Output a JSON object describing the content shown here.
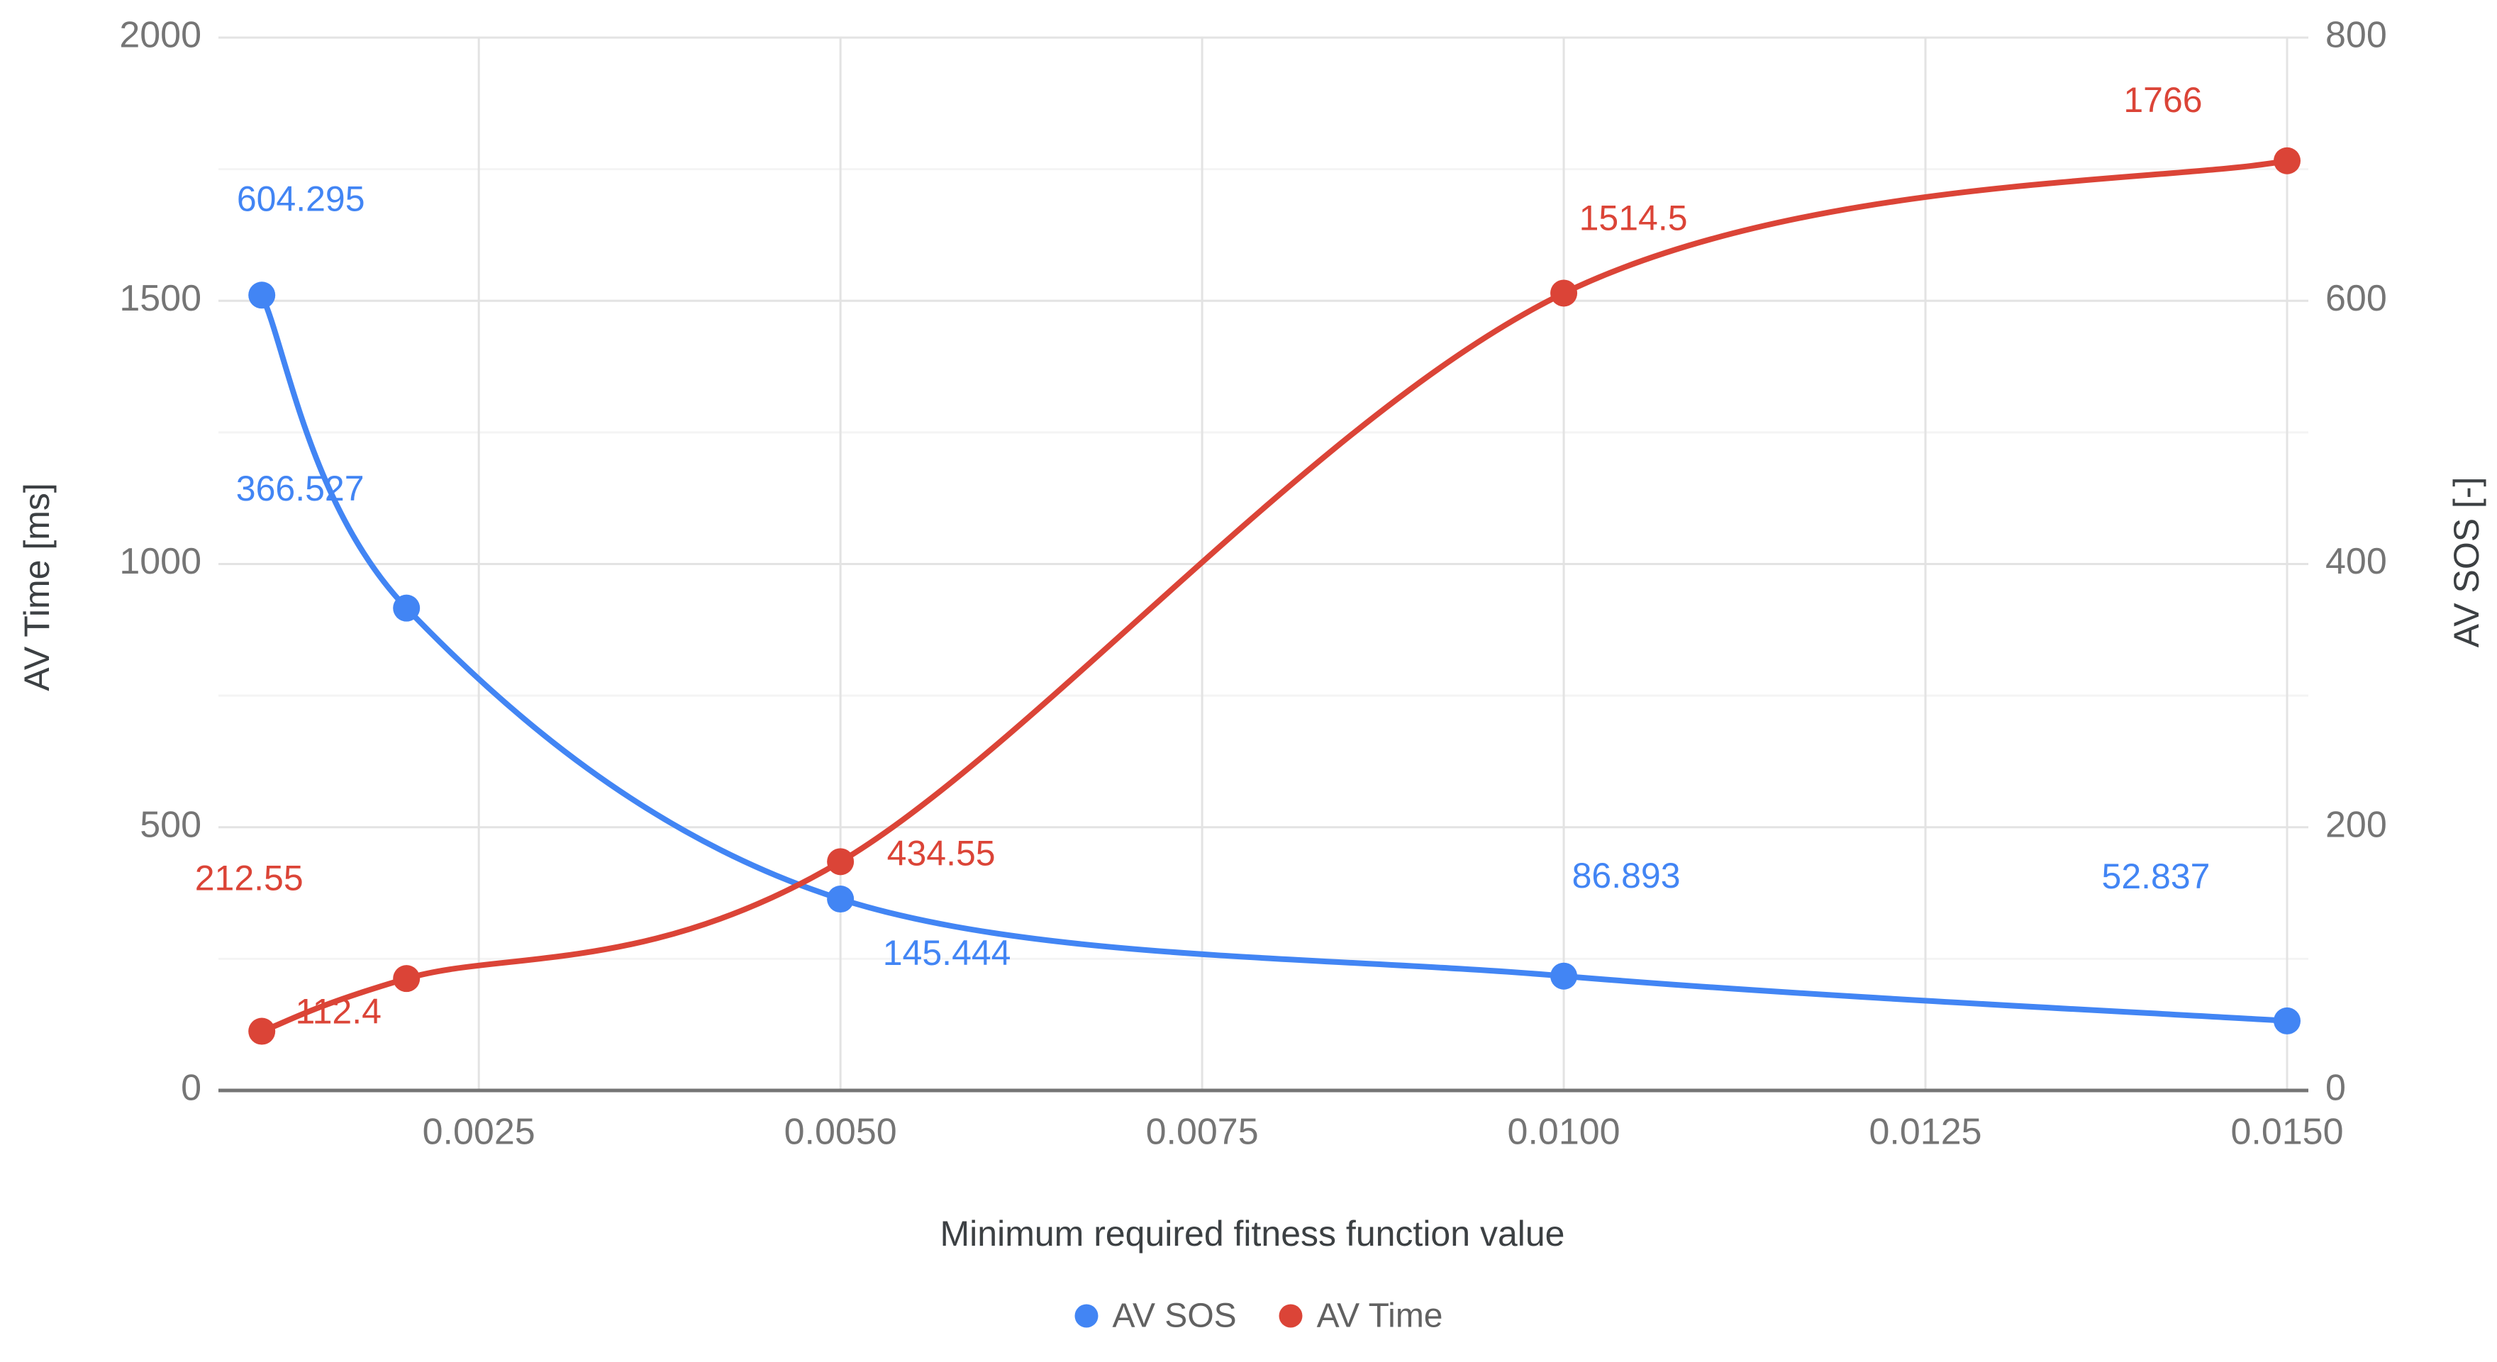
{
  "chart_data": {
    "type": "line",
    "smooth": true,
    "background": "#ffffff",
    "x": [
      0.001,
      0.002,
      0.005,
      0.01,
      0.015
    ],
    "series": [
      {
        "name": "AV SOS",
        "axis": "right",
        "color": "#4285F4",
        "values": [
          604.295,
          366.527,
          145.444,
          86.893,
          52.837
        ],
        "labels": [
          "604.295",
          "366.527",
          "145.444",
          "86.893",
          "52.837"
        ]
      },
      {
        "name": "AV Time",
        "axis": "left",
        "color": "#DB4437",
        "values": [
          112.4,
          212.55,
          434.55,
          1514.5,
          1766
        ],
        "labels": [
          "112.4",
          "212.55",
          "434.55",
          "1514.5",
          "1766"
        ]
      }
    ],
    "x_axis": {
      "title": "Minimum required fitness function value",
      "min": 0.0007,
      "max": 0.015,
      "ticks": [
        0.0025,
        0.005,
        0.0075,
        0.01,
        0.0125,
        0.015
      ],
      "tick_labels": [
        "0.0025",
        "0.0050",
        "0.0075",
        "0.0100",
        "0.0125",
        "0.0150"
      ]
    },
    "y_left": {
      "title": "AV Time [ms]",
      "min": 0,
      "max": 2000,
      "ticks": [
        0,
        500,
        1000,
        1500,
        2000
      ],
      "tick_labels": [
        "0",
        "500",
        "1000",
        "1500",
        "2000"
      ],
      "minor_ticks": [
        250,
        750,
        1250,
        1750
      ]
    },
    "y_right": {
      "title": "AV SOS [-]",
      "min": 0,
      "max": 800,
      "ticks": [
        0,
        200,
        400,
        600,
        800
      ],
      "tick_labels": [
        "0",
        "200",
        "400",
        "600",
        "800"
      ]
    },
    "legend": {
      "position": "bottom",
      "items": [
        {
          "label": "AV SOS",
          "color": "#4285F4"
        },
        {
          "label": "AV Time",
          "color": "#DB4437"
        }
      ]
    },
    "grid": true
  },
  "colors": {
    "major_grid": "#e3e3e3",
    "minor_grid": "#f4f4f4",
    "baseline": "#757575",
    "tick_text": "#757575",
    "axis_title_text": "#3c4043",
    "legend_text": "#616161"
  }
}
